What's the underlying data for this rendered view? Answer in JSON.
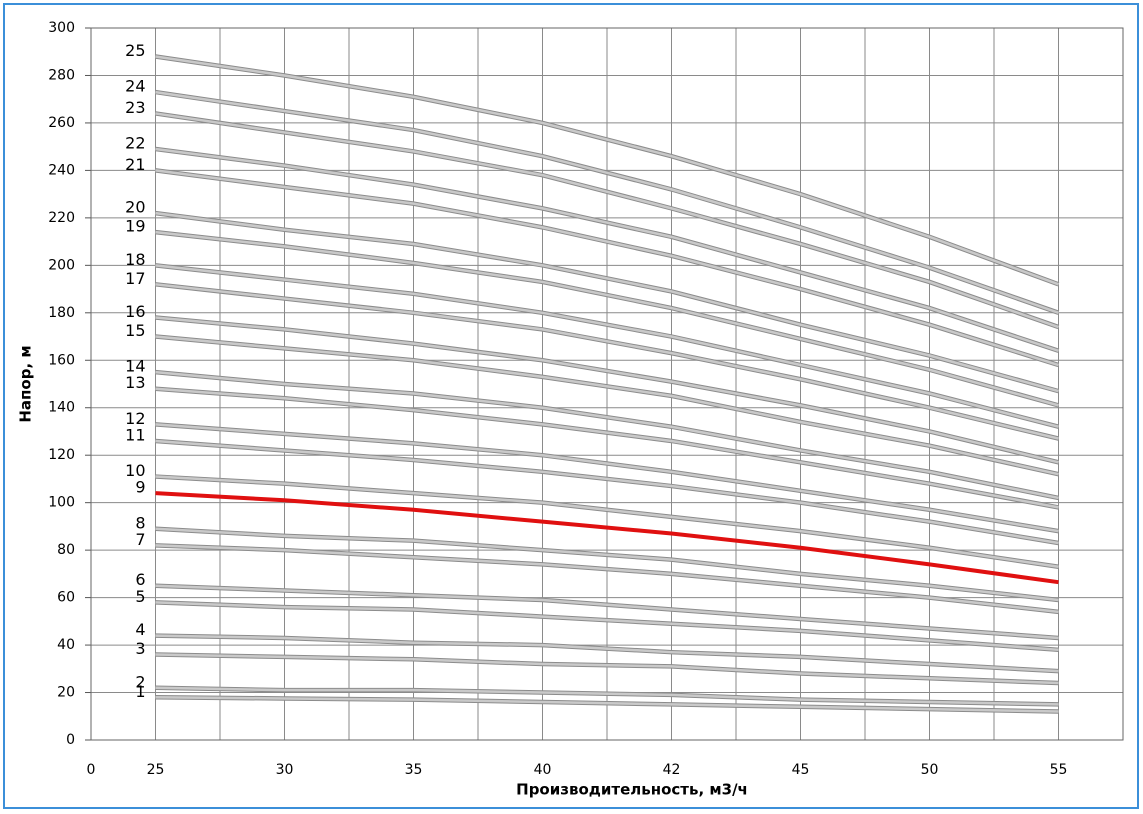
{
  "chart_data": {
    "type": "line",
    "x_label": "Производительность, м3/ч",
    "y_label": "Напор, м",
    "categories": [
      "0",
      "25",
      "30",
      "35",
      "40",
      "42",
      "45",
      "50",
      "55"
    ],
    "ylim": [
      0,
      300
    ],
    "yticks": [
      0,
      20,
      40,
      60,
      80,
      100,
      120,
      140,
      160,
      180,
      200,
      220,
      240,
      260,
      280,
      300
    ],
    "grid": true,
    "series": [
      {
        "name": "1",
        "color": "#c9c9c9",
        "values": [
          null,
          18,
          17.5,
          17,
          16,
          15,
          14,
          13,
          12
        ]
      },
      {
        "name": "2",
        "color": "#c9c9c9",
        "values": [
          null,
          22,
          21,
          21,
          20,
          19,
          17,
          16,
          15
        ]
      },
      {
        "name": "3",
        "color": "#c9c9c9",
        "values": [
          null,
          36,
          35,
          34,
          32,
          31,
          28,
          26,
          24
        ]
      },
      {
        "name": "4",
        "color": "#c9c9c9",
        "values": [
          null,
          44,
          43,
          41,
          40,
          37,
          35,
          32,
          29
        ]
      },
      {
        "name": "5",
        "color": "#c9c9c9",
        "values": [
          null,
          58,
          56,
          55,
          52,
          49,
          46,
          42,
          38
        ]
      },
      {
        "name": "6",
        "color": "#c9c9c9",
        "values": [
          null,
          65,
          63,
          61,
          59,
          55,
          51,
          47,
          43
        ]
      },
      {
        "name": "7",
        "color": "#c9c9c9",
        "values": [
          null,
          82,
          80,
          77,
          74,
          70,
          65,
          60,
          54
        ]
      },
      {
        "name": "8",
        "color": "#c9c9c9",
        "values": [
          null,
          89,
          86,
          84,
          80,
          76,
          70,
          65,
          59
        ]
      },
      {
        "name": "9",
        "color": "#e01010",
        "values": [
          null,
          104,
          101,
          97,
          92,
          87,
          81,
          74,
          66.5
        ]
      },
      {
        "name": "10",
        "color": "#c9c9c9",
        "values": [
          null,
          111,
          108,
          104,
          100,
          94,
          88,
          81,
          73
        ]
      },
      {
        "name": "11",
        "color": "#c9c9c9",
        "values": [
          null,
          126,
          122,
          118,
          113,
          107,
          100,
          92,
          83
        ]
      },
      {
        "name": "12",
        "color": "#c9c9c9",
        "values": [
          null,
          133,
          129,
          125,
          120,
          113,
          105,
          97,
          88
        ]
      },
      {
        "name": "13",
        "color": "#c9c9c9",
        "values": [
          null,
          148,
          144,
          139,
          133,
          126,
          117,
          108,
          98
        ]
      },
      {
        "name": "14",
        "color": "#c9c9c9",
        "values": [
          null,
          155,
          150,
          146,
          140,
          132,
          122,
          113,
          102
        ]
      },
      {
        "name": "15",
        "color": "#c9c9c9",
        "values": [
          null,
          170,
          165,
          160,
          153,
          145,
          134,
          124,
          112
        ]
      },
      {
        "name": "16",
        "color": "#c9c9c9",
        "values": [
          null,
          178,
          173,
          167,
          160,
          151,
          141,
          130,
          117
        ]
      },
      {
        "name": "17",
        "color": "#c9c9c9",
        "values": [
          null,
          192,
          186,
          180,
          173,
          163,
          152,
          140,
          127
        ]
      },
      {
        "name": "18",
        "color": "#c9c9c9",
        "values": [
          null,
          200,
          194,
          188,
          180,
          170,
          158,
          146,
          132
        ]
      },
      {
        "name": "19",
        "color": "#c9c9c9",
        "values": [
          null,
          214,
          208,
          201,
          193,
          182,
          169,
          156,
          141
        ]
      },
      {
        "name": "20",
        "color": "#c9c9c9",
        "values": [
          null,
          222,
          215,
          209,
          200,
          189,
          175,
          162,
          147
        ]
      },
      {
        "name": "21",
        "color": "#c9c9c9",
        "values": [
          null,
          240,
          233,
          226,
          216,
          204,
          190,
          175,
          158
        ]
      },
      {
        "name": "22",
        "color": "#c9c9c9",
        "values": [
          null,
          249,
          242,
          234,
          224,
          212,
          197,
          182,
          164
        ]
      },
      {
        "name": "23",
        "color": "#c9c9c9",
        "values": [
          null,
          264,
          256,
          248,
          238,
          224,
          209,
          193,
          174
        ]
      },
      {
        "name": "24",
        "color": "#c9c9c9",
        "values": [
          null,
          273,
          265,
          257,
          246,
          232,
          216,
          199,
          180
        ]
      },
      {
        "name": "25",
        "color": "#c9c9c9",
        "values": [
          null,
          288,
          280,
          271,
          260,
          246,
          230,
          212,
          192
        ]
      }
    ]
  }
}
